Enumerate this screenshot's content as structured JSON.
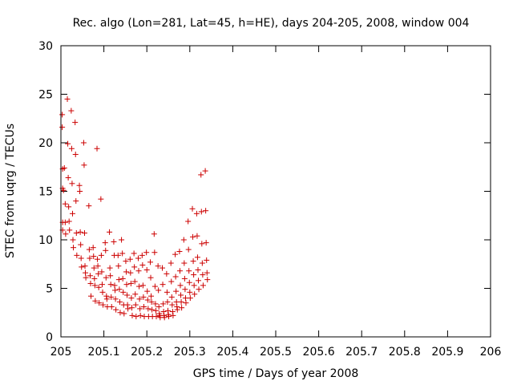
{
  "chart_data": {
    "type": "scatter",
    "title": "Rec. algo (Lon=281, Lat=45, h=HE), days 204-205, 2008, window 004",
    "xlabel": "GPS time / Days of year 2008",
    "ylabel": "STEC from uqrg / TECUs",
    "xlim": [
      205,
      206
    ],
    "ylim": [
      0,
      30
    ],
    "x_ticks": [
      "205",
      "205.1",
      "205.2",
      "205.3",
      "205.4",
      "205.5",
      "205.6",
      "205.7",
      "205.8",
      "205.9",
      "206"
    ],
    "x_tick_values": [
      205,
      205.1,
      205.2,
      205.3,
      205.4,
      205.5,
      205.6,
      205.7,
      205.8,
      205.9,
      206
    ],
    "y_ticks": [
      "0",
      "5",
      "10",
      "15",
      "20",
      "25",
      "30"
    ],
    "y_tick_values": [
      0,
      5,
      10,
      15,
      20,
      25,
      30
    ],
    "grid": false,
    "legend": "none",
    "marker": "+",
    "color": "#cc0000",
    "series_name": "STEC",
    "points": [
      [
        205.003,
        22.9
      ],
      [
        205.003,
        21.6
      ],
      [
        205.004,
        17.3
      ],
      [
        205.004,
        15.3
      ],
      [
        205.004,
        11.8
      ],
      [
        205.004,
        11.0
      ],
      [
        205.006,
        15.1
      ],
      [
        205.008,
        17.4
      ],
      [
        205.01,
        13.7
      ],
      [
        205.01,
        11.8
      ],
      [
        205.011,
        10.6
      ],
      [
        205.015,
        24.5
      ],
      [
        205.016,
        19.9
      ],
      [
        205.017,
        16.4
      ],
      [
        205.018,
        13.4
      ],
      [
        205.019,
        11.9
      ],
      [
        205.02,
        11.0
      ],
      [
        205.024,
        23.3
      ],
      [
        205.025,
        19.4
      ],
      [
        205.026,
        15.8
      ],
      [
        205.027,
        12.7
      ],
      [
        205.028,
        10.0
      ],
      [
        205.029,
        9.2
      ],
      [
        205.033,
        22.1
      ],
      [
        205.034,
        18.8
      ],
      [
        205.035,
        14.0
      ],
      [
        205.036,
        10.7
      ],
      [
        205.037,
        8.4
      ],
      [
        205.043,
        15.6
      ],
      [
        205.044,
        15.0
      ],
      [
        205.045,
        10.8
      ],
      [
        205.046,
        9.5
      ],
      [
        205.047,
        8.1
      ],
      [
        205.048,
        7.2
      ],
      [
        205.053,
        20.0
      ],
      [
        205.054,
        17.7
      ],
      [
        205.055,
        10.7
      ],
      [
        205.056,
        7.3
      ],
      [
        205.057,
        6.6
      ],
      [
        205.058,
        6.1
      ],
      [
        205.065,
        13.5
      ],
      [
        205.066,
        9.0
      ],
      [
        205.067,
        8.1
      ],
      [
        205.068,
        6.3
      ],
      [
        205.069,
        5.5
      ],
      [
        205.07,
        4.2
      ],
      [
        205.075,
        9.2
      ],
      [
        205.076,
        8.3
      ],
      [
        205.077,
        7.1
      ],
      [
        205.078,
        6.0
      ],
      [
        205.079,
        5.3
      ],
      [
        205.08,
        3.7
      ],
      [
        205.084,
        19.4
      ],
      [
        205.085,
        8.0
      ],
      [
        205.086,
        7.3
      ],
      [
        205.087,
        6.5
      ],
      [
        205.088,
        5.1
      ],
      [
        205.089,
        3.5
      ],
      [
        205.093,
        14.2
      ],
      [
        205.094,
        8.4
      ],
      [
        205.095,
        6.7
      ],
      [
        205.096,
        5.4
      ],
      [
        205.097,
        4.6
      ],
      [
        205.098,
        3.3
      ],
      [
        205.103,
        9.7
      ],
      [
        205.104,
        8.9
      ],
      [
        205.105,
        6.1
      ],
      [
        205.106,
        4.2
      ],
      [
        205.107,
        3.9
      ],
      [
        205.108,
        3.1
      ],
      [
        205.113,
        10.8
      ],
      [
        205.114,
        7.1
      ],
      [
        205.115,
        6.3
      ],
      [
        205.116,
        5.4
      ],
      [
        205.117,
        4.1
      ],
      [
        205.118,
        3.1
      ],
      [
        205.123,
        9.8
      ],
      [
        205.124,
        8.4
      ],
      [
        205.125,
        5.3
      ],
      [
        205.126,
        4.8
      ],
      [
        205.127,
        3.9
      ],
      [
        205.128,
        2.8
      ],
      [
        205.133,
        8.4
      ],
      [
        205.134,
        7.3
      ],
      [
        205.135,
        5.9
      ],
      [
        205.136,
        4.9
      ],
      [
        205.137,
        3.6
      ],
      [
        205.138,
        2.5
      ],
      [
        205.141,
        10.0
      ],
      [
        205.143,
        8.6
      ],
      [
        205.144,
        6.0
      ],
      [
        205.145,
        4.6
      ],
      [
        205.146,
        3.3
      ],
      [
        205.147,
        2.4
      ],
      [
        205.151,
        7.8
      ],
      [
        205.152,
        6.7
      ],
      [
        205.153,
        5.4
      ],
      [
        205.154,
        4.3
      ],
      [
        205.155,
        3.3
      ],
      [
        205.156,
        2.9
      ],
      [
        205.161,
        8.0
      ],
      [
        205.162,
        6.6
      ],
      [
        205.163,
        5.5
      ],
      [
        205.164,
        4.0
      ],
      [
        205.165,
        3.0
      ],
      [
        205.166,
        2.2
      ],
      [
        205.17,
        8.6
      ],
      [
        205.171,
        7.2
      ],
      [
        205.172,
        5.7
      ],
      [
        205.173,
        4.4
      ],
      [
        205.174,
        3.3
      ],
      [
        205.175,
        2.1
      ],
      [
        205.18,
        8.1
      ],
      [
        205.181,
        6.8
      ],
      [
        205.182,
        5.2
      ],
      [
        205.183,
        3.9
      ],
      [
        205.184,
        2.9
      ],
      [
        205.185,
        2.2
      ],
      [
        205.189,
        8.4
      ],
      [
        205.19,
        7.4
      ],
      [
        205.191,
        5.3
      ],
      [
        205.192,
        4.1
      ],
      [
        205.193,
        3.1
      ],
      [
        205.194,
        2.1
      ],
      [
        205.199,
        8.7
      ],
      [
        205.2,
        6.9
      ],
      [
        205.201,
        4.7
      ],
      [
        205.202,
        3.8
      ],
      [
        205.203,
        2.9
      ],
      [
        205.204,
        2.1
      ],
      [
        205.208,
        7.7
      ],
      [
        205.209,
        6.1
      ],
      [
        205.21,
        4.2
      ],
      [
        205.211,
        3.6
      ],
      [
        205.212,
        2.8
      ],
      [
        205.213,
        2.1
      ],
      [
        205.217,
        10.6
      ],
      [
        205.218,
        8.7
      ],
      [
        205.219,
        5.2
      ],
      [
        205.22,
        3.4
      ],
      [
        205.221,
        2.7
      ],
      [
        205.222,
        2.1
      ],
      [
        205.226,
        7.3
      ],
      [
        205.227,
        4.8
      ],
      [
        205.228,
        3.1
      ],
      [
        205.229,
        2.4
      ],
      [
        205.23,
        2.2
      ],
      [
        205.231,
        2.0
      ],
      [
        205.236,
        7.1
      ],
      [
        205.237,
        5.4
      ],
      [
        205.238,
        3.4
      ],
      [
        205.239,
        2.6
      ],
      [
        205.24,
        2.2
      ],
      [
        205.241,
        2.0
      ],
      [
        205.246,
        6.5
      ],
      [
        205.247,
        4.6
      ],
      [
        205.248,
        3.6
      ],
      [
        205.249,
        2.7
      ],
      [
        205.25,
        2.3
      ],
      [
        205.251,
        2.1
      ],
      [
        205.256,
        7.6
      ],
      [
        205.257,
        5.7
      ],
      [
        205.258,
        4.1
      ],
      [
        205.259,
        3.3
      ],
      [
        205.26,
        2.6
      ],
      [
        205.261,
        2.2
      ],
      [
        205.266,
        8.5
      ],
      [
        205.267,
        6.2
      ],
      [
        205.268,
        4.7
      ],
      [
        205.269,
        3.6
      ],
      [
        205.27,
        3.1
      ],
      [
        205.271,
        2.8
      ],
      [
        205.276,
        8.8
      ],
      [
        205.277,
        6.8
      ],
      [
        205.278,
        5.3
      ],
      [
        205.279,
        4.3
      ],
      [
        205.28,
        3.6
      ],
      [
        205.281,
        3.0
      ],
      [
        205.286,
        10.0
      ],
      [
        205.287,
        7.6
      ],
      [
        205.288,
        6.0
      ],
      [
        205.289,
        4.9
      ],
      [
        205.29,
        4.0
      ],
      [
        205.291,
        3.5
      ],
      [
        205.296,
        11.9
      ],
      [
        205.297,
        9.0
      ],
      [
        205.298,
        6.8
      ],
      [
        205.299,
        5.6
      ],
      [
        205.3,
        4.6
      ],
      [
        205.301,
        4.0
      ],
      [
        205.306,
        13.2
      ],
      [
        205.307,
        10.3
      ],
      [
        205.308,
        7.8
      ],
      [
        205.309,
        6.4
      ],
      [
        205.31,
        5.3
      ],
      [
        205.311,
        4.4
      ],
      [
        205.316,
        12.7
      ],
      [
        205.317,
        10.4
      ],
      [
        205.318,
        8.2
      ],
      [
        205.319,
        6.9
      ],
      [
        205.32,
        5.8
      ],
      [
        205.321,
        4.9
      ],
      [
        205.326,
        16.7
      ],
      [
        205.327,
        12.9
      ],
      [
        205.328,
        9.6
      ],
      [
        205.329,
        7.6
      ],
      [
        205.33,
        6.4
      ],
      [
        205.331,
        5.3
      ],
      [
        205.336,
        17.1
      ],
      [
        205.337,
        13.0
      ],
      [
        205.338,
        9.7
      ],
      [
        205.339,
        7.9
      ],
      [
        205.34,
        6.6
      ],
      [
        205.341,
        5.9
      ]
    ]
  }
}
